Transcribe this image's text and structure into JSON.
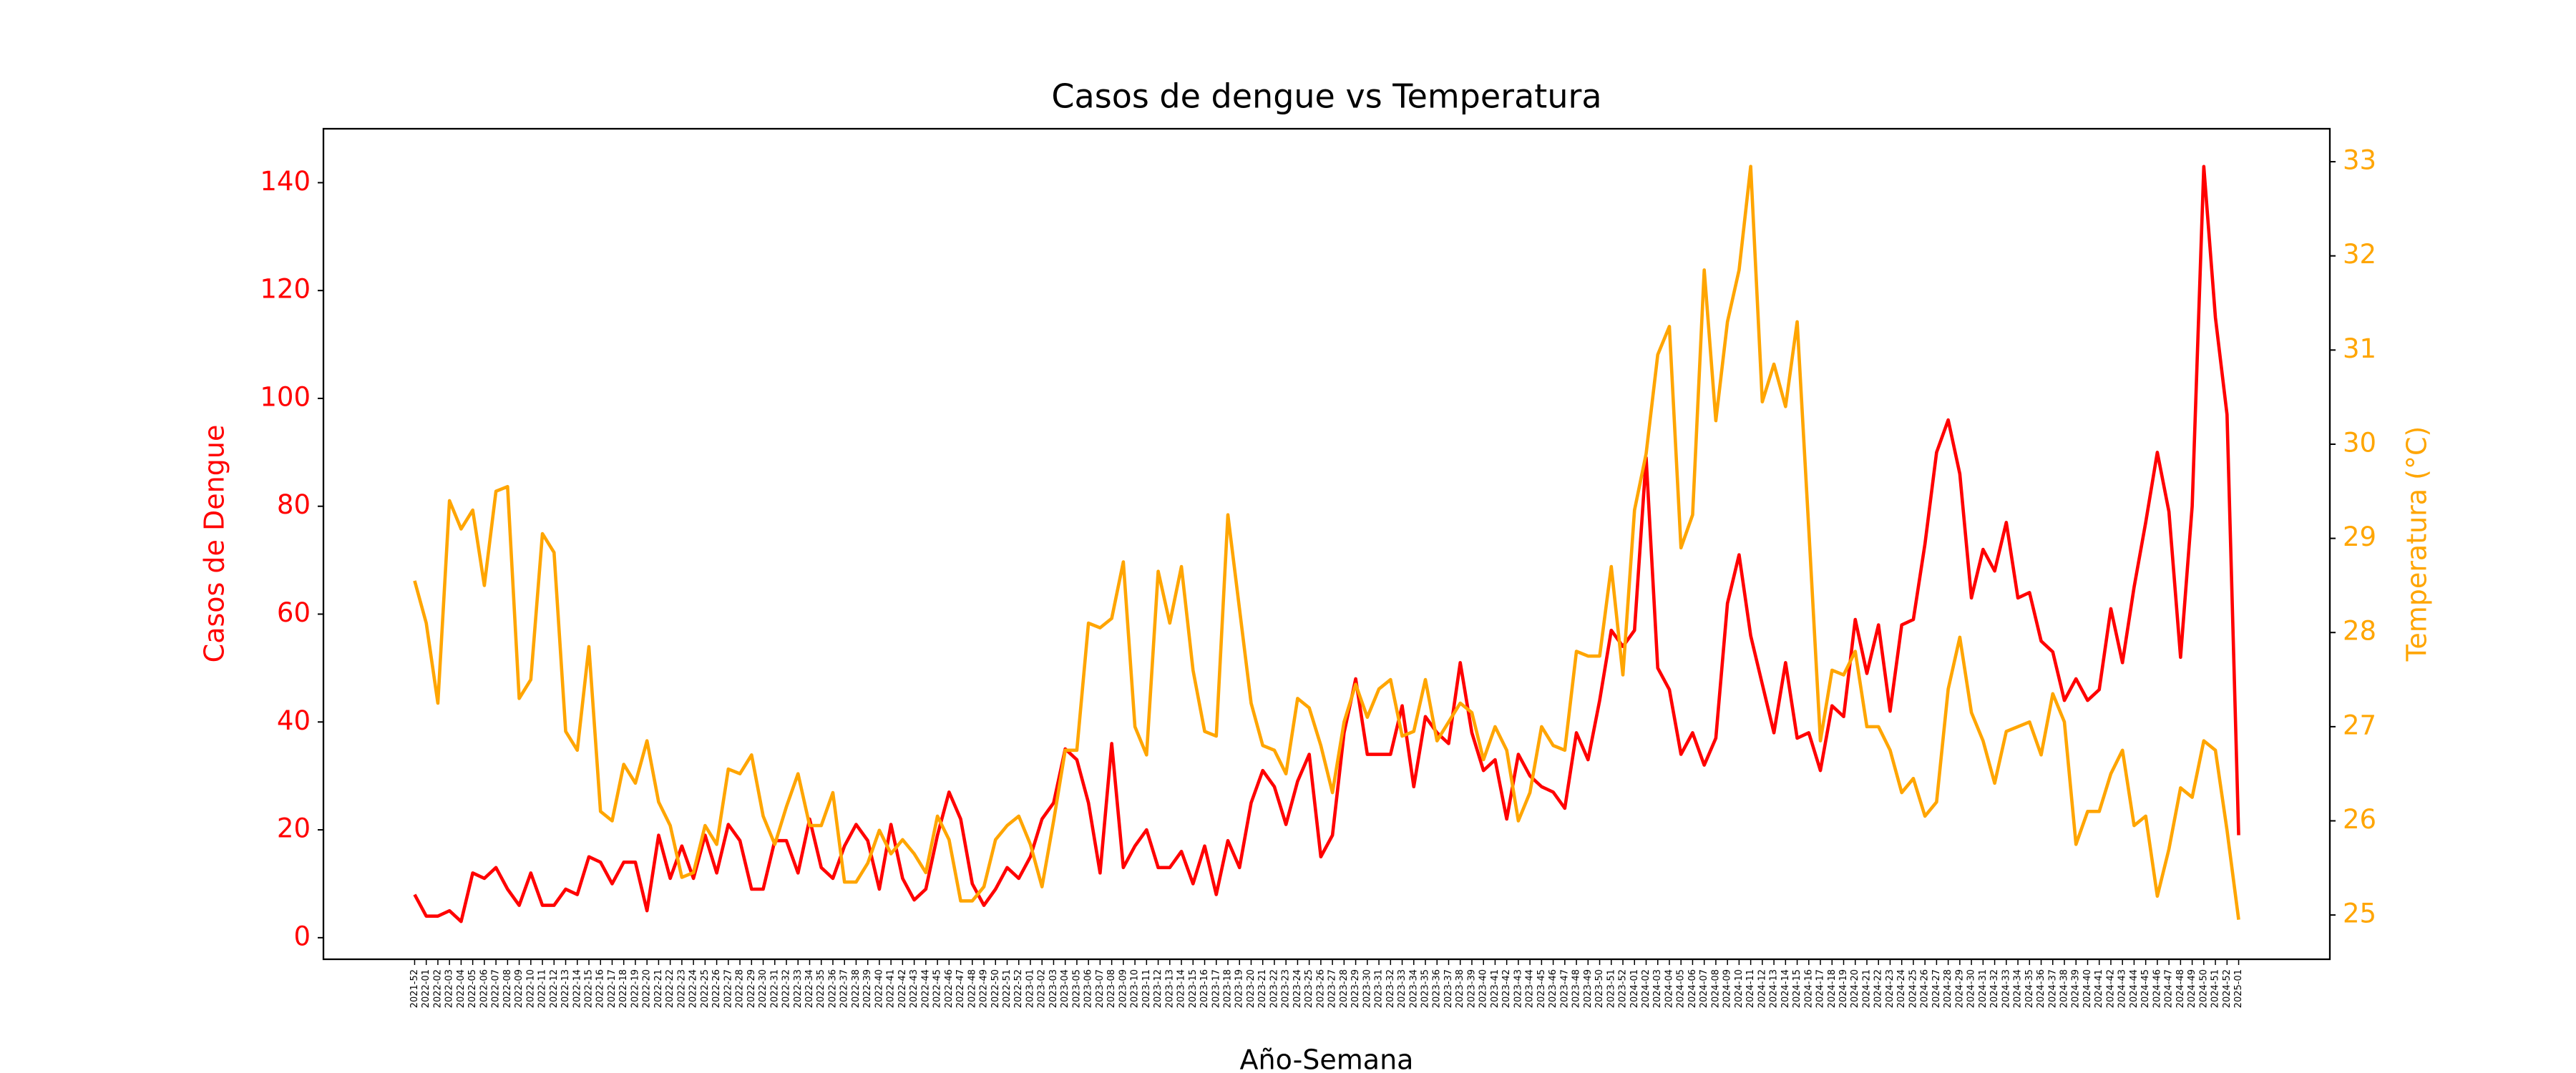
{
  "chart_data": {
    "type": "line",
    "title": "Casos de dengue vs Temperatura",
    "x_label": "Año-Semana",
    "y_label": "Casos de Dengue",
    "y2_label": "Temperatura (°C)",
    "categories": [
      "2021-52",
      "2022-01",
      "2022-02",
      "2022-03",
      "2022-04",
      "2022-05",
      "2022-06",
      "2022-07",
      "2022-08",
      "2022-09",
      "2022-10",
      "2022-11",
      "2022-12",
      "2022-13",
      "2022-14",
      "2022-15",
      "2022-16",
      "2022-17",
      "2022-18",
      "2022-19",
      "2022-20",
      "2022-21",
      "2022-22",
      "2022-23",
      "2022-24",
      "2022-25",
      "2022-26",
      "2022-27",
      "2022-28",
      "2022-29",
      "2022-30",
      "2022-31",
      "2022-32",
      "2022-33",
      "2022-34",
      "2022-35",
      "2022-36",
      "2022-37",
      "2022-38",
      "2022-39",
      "2022-40",
      "2022-41",
      "2022-42",
      "2022-43",
      "2022-44",
      "2022-45",
      "2022-46",
      "2022-47",
      "2022-48",
      "2022-49",
      "2022-50",
      "2022-51",
      "2022-52",
      "2023-01",
      "2023-02",
      "2023-03",
      "2023-04",
      "2023-05",
      "2023-06",
      "2023-07",
      "2023-08",
      "2023-09",
      "2023-10",
      "2023-11",
      "2023-12",
      "2023-13",
      "2023-14",
      "2023-15",
      "2023-16",
      "2023-17",
      "2023-18",
      "2023-19",
      "2023-20",
      "2023-21",
      "2023-22",
      "2023-23",
      "2023-24",
      "2023-25",
      "2023-26",
      "2023-27",
      "2023-28",
      "2023-29",
      "2023-30",
      "2023-31",
      "2023-32",
      "2023-33",
      "2023-34",
      "2023-35",
      "2023-36",
      "2023-37",
      "2023-38",
      "2023-39",
      "2023-40",
      "2023-41",
      "2023-42",
      "2023-43",
      "2023-44",
      "2023-45",
      "2023-46",
      "2023-47",
      "2023-48",
      "2023-49",
      "2023-50",
      "2023-51",
      "2023-52",
      "2024-01",
      "2024-02",
      "2024-03",
      "2024-04",
      "2024-05",
      "2024-06",
      "2024-07",
      "2024-08",
      "2024-09",
      "2024-10",
      "2024-11",
      "2024-12",
      "2024-13",
      "2024-14",
      "2024-15",
      "2024-16",
      "2024-17",
      "2024-18",
      "2024-19",
      "2024-20",
      "2024-21",
      "2024-22",
      "2024-23",
      "2024-24",
      "2024-25",
      "2024-26",
      "2024-27",
      "2024-28",
      "2024-29",
      "2024-30",
      "2024-31",
      "2024-32",
      "2024-33",
      "2024-34",
      "2024-35",
      "2024-36",
      "2024-37",
      "2024-38",
      "2024-39",
      "2024-40",
      "2024-41",
      "2024-42",
      "2024-43",
      "2024-44",
      "2024-45",
      "2024-46",
      "2024-47",
      "2024-48",
      "2024-49",
      "2024-50",
      "2024-51",
      "2024-52",
      "2025-01"
    ],
    "series": [
      {
        "name": "Casos de Dengue",
        "color": "#ff0000",
        "axis": "y",
        "values": [
          8,
          4,
          4,
          5,
          3,
          12,
          11,
          13,
          9,
          6,
          12,
          6,
          6,
          9,
          8,
          15,
          14,
          10,
          14,
          14,
          5,
          19,
          11,
          17,
          11,
          19,
          12,
          21,
          18,
          9,
          9,
          18,
          18,
          12,
          22,
          13,
          11,
          17,
          21,
          18,
          9,
          21,
          11,
          7,
          9,
          19,
          27,
          22,
          10,
          6,
          9,
          13,
          11,
          15,
          22,
          25,
          35,
          33,
          25,
          12,
          36,
          13,
          17,
          20,
          13,
          13,
          16,
          10,
          17,
          8,
          18,
          13,
          25,
          31,
          28,
          21,
          29,
          34,
          15,
          19,
          38,
          48,
          34,
          34,
          34,
          43,
          28,
          41,
          38,
          36,
          51,
          38,
          31,
          33,
          22,
          34,
          30,
          28,
          27,
          24,
          38,
          33,
          44,
          57,
          54,
          57,
          89,
          50,
          46,
          34,
          38,
          32,
          37,
          62,
          71,
          56,
          47,
          38,
          51,
          37,
          38,
          31,
          43,
          41,
          59,
          49,
          58,
          42,
          58,
          59,
          73,
          90,
          96,
          86,
          63,
          72,
          68,
          77,
          63,
          64,
          55,
          53,
          44,
          48,
          44,
          46,
          61,
          51,
          65,
          77,
          90,
          79,
          52,
          80,
          143,
          115,
          97,
          19
        ]
      },
      {
        "name": "Temperatura (°C)",
        "color": "#ffa500",
        "axis": "y2",
        "values": [
          28.55,
          28.1,
          27.25,
          29.4,
          29.1,
          29.3,
          28.5,
          29.5,
          29.55,
          27.3,
          27.5,
          29.05,
          28.85,
          26.95,
          26.75,
          27.85,
          26.1,
          26.0,
          26.6,
          26.4,
          26.85,
          26.2,
          25.95,
          25.4,
          25.45,
          25.95,
          25.75,
          26.55,
          26.5,
          26.7,
          26.05,
          25.75,
          26.15,
          26.5,
          25.95,
          25.95,
          26.3,
          25.35,
          25.35,
          25.55,
          25.9,
          25.65,
          25.8,
          25.65,
          25.45,
          26.05,
          25.8,
          25.15,
          25.15,
          25.3,
          25.8,
          25.95,
          26.05,
          25.75,
          25.3,
          26.0,
          26.75,
          26.75,
          28.1,
          28.05,
          28.15,
          28.75,
          27.0,
          26.7,
          28.65,
          28.1,
          28.7,
          27.6,
          26.95,
          26.9,
          29.25,
          28.25,
          27.25,
          26.8,
          26.75,
          26.5,
          27.3,
          27.2,
          26.8,
          26.3,
          27.05,
          27.45,
          27.1,
          27.4,
          27.5,
          26.9,
          26.95,
          27.5,
          26.85,
          27.05,
          27.25,
          27.15,
          26.65,
          27.0,
          26.75,
          26.0,
          26.3,
          27.0,
          26.8,
          26.75,
          27.8,
          27.75,
          27.75,
          28.7,
          27.55,
          29.3,
          29.9,
          30.95,
          31.25,
          28.9,
          29.25,
          31.85,
          30.25,
          31.3,
          31.85,
          32.95,
          30.45,
          30.85,
          30.4,
          31.3,
          29.1,
          26.85,
          27.6,
          27.55,
          27.8,
          27.0,
          27.0,
          26.75,
          26.3,
          26.45,
          26.05,
          26.2,
          27.4,
          27.95,
          27.15,
          26.85,
          26.4,
          26.95,
          27.0,
          27.05,
          26.7,
          27.35,
          27.05,
          25.75,
          26.1,
          26.1,
          26.5,
          26.75,
          25.95,
          26.05,
          25.2,
          25.7,
          26.35,
          26.25,
          26.85,
          26.75,
          25.9,
          24.95
        ]
      }
    ],
    "ylim": [
      -4,
      150
    ],
    "yticks": [
      0,
      20,
      40,
      60,
      80,
      100,
      120,
      140
    ],
    "y2lim": [
      24.53,
      33.35
    ],
    "y2ticks": [
      25,
      26,
      27,
      28,
      29,
      30,
      31,
      32,
      33
    ],
    "grid": false
  }
}
